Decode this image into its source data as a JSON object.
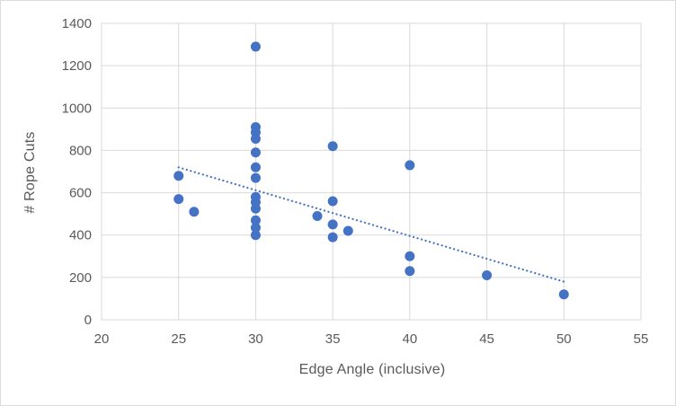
{
  "chart_data": {
    "type": "scatter",
    "title": "",
    "xlabel": "Edge Angle (inclusive)",
    "ylabel": "# Rope Cuts",
    "xlim": [
      20,
      55
    ],
    "ylim": [
      0,
      1400
    ],
    "x_ticks": [
      20,
      25,
      30,
      35,
      40,
      45,
      50,
      55
    ],
    "y_ticks": [
      0,
      200,
      400,
      600,
      800,
      1000,
      1200,
      1400
    ],
    "grid": true,
    "legend": "none",
    "colors": {
      "marker": "#4472C4",
      "trendline": "#4472C4",
      "gridline": "#D9D9D9",
      "plot_border": "#D9D9D9",
      "axis_text": "#595959"
    },
    "series": [
      {
        "name": "rope-cuts",
        "points": [
          [
            25,
            680
          ],
          [
            25,
            570
          ],
          [
            26,
            510
          ],
          [
            30,
            1290
          ],
          [
            30,
            910
          ],
          [
            30,
            885
          ],
          [
            30,
            855
          ],
          [
            30,
            790
          ],
          [
            30,
            720
          ],
          [
            30,
            670
          ],
          [
            30,
            580
          ],
          [
            30,
            555
          ],
          [
            30,
            525
          ],
          [
            30,
            470
          ],
          [
            30,
            435
          ],
          [
            30,
            400
          ],
          [
            34,
            490
          ],
          [
            35,
            820
          ],
          [
            35,
            560
          ],
          [
            35,
            450
          ],
          [
            35,
            390
          ],
          [
            36,
            420
          ],
          [
            40,
            730
          ],
          [
            40,
            300
          ],
          [
            40,
            230
          ],
          [
            45,
            210
          ],
          [
            50,
            120
          ]
        ]
      }
    ],
    "trendline": {
      "type": "linear",
      "style": "dotted",
      "x_start": 25,
      "y_start": 720,
      "x_end": 50,
      "y_end": 180
    }
  }
}
